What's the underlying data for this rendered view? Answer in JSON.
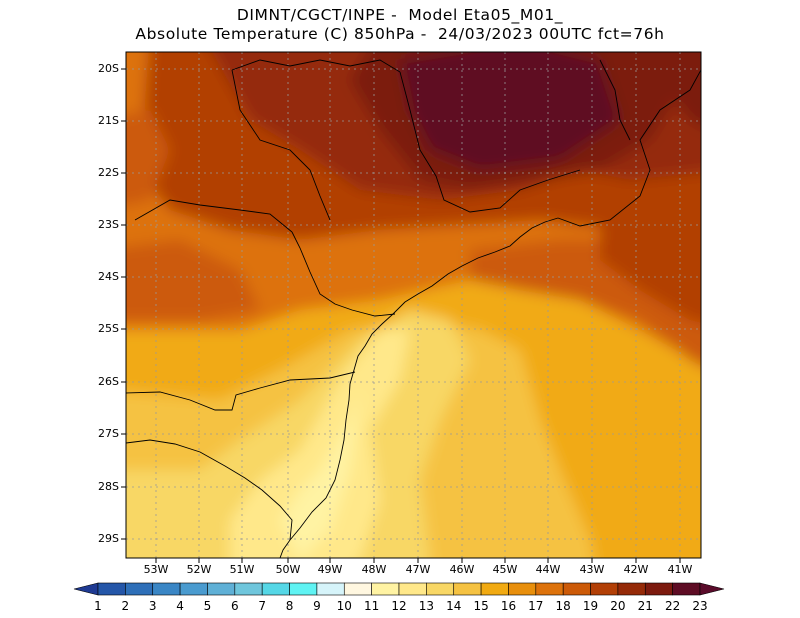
{
  "title": {
    "line1": "DIMNT/CGCT/INPE -  Model Eta05_M01_",
    "line2": "Absolute Temperature (C) 850hPa -  24/03/2023 00UTC fct=76h"
  },
  "map": {
    "variable": "Absolute Temperature",
    "units": "C",
    "level": "850hPa",
    "lat_ticks": [
      "20S",
      "21S",
      "22S",
      "23S",
      "24S",
      "25S",
      "26S",
      "27S",
      "28S",
      "29S"
    ],
    "lon_ticks": [
      "53W",
      "52W",
      "51W",
      "50W",
      "49W",
      "48W",
      "47W",
      "46W",
      "45W",
      "44W",
      "43W",
      "42W",
      "41W"
    ]
  },
  "colorbar": {
    "labels": [
      "1",
      "2",
      "3",
      "4",
      "5",
      "6",
      "7",
      "8",
      "9",
      "10",
      "11",
      "12",
      "13",
      "14",
      "15",
      "16",
      "17",
      "18",
      "19",
      "20",
      "21",
      "22",
      "23"
    ],
    "colors": [
      "#1f3a93",
      "#2456a8",
      "#2e6fb8",
      "#3a86c5",
      "#4a9bcf",
      "#5fb0d6",
      "#6fc6dc",
      "#55d7e6",
      "#5ff3f3",
      "#d6f4fa",
      "#fff7e0",
      "#fff3a3",
      "#ffe88a",
      "#f8d765",
      "#f5c242",
      "#f1aa12",
      "#e88f0c",
      "#dd720b",
      "#cc5a08",
      "#b23f06",
      "#952a08",
      "#7c1a0e",
      "#5e0c24",
      "#5a0b2a"
    ]
  }
}
